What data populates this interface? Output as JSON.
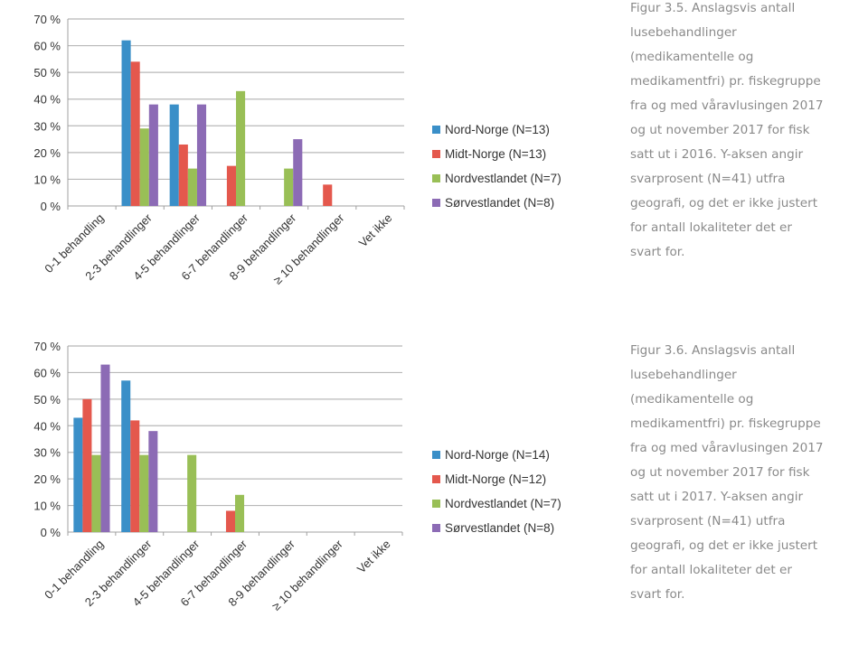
{
  "colors": {
    "Nord-Norge": "#3a8fc8",
    "Midt-Norge": "#e4584d",
    "Nordvestlandet": "#99bf56",
    "Sørvestlandet": "#8c6bb5",
    "grid": "#b8b8b8",
    "axis": "#a0a0a0"
  },
  "chart_data": [
    {
      "type": "bar",
      "title": "",
      "xlabel": "",
      "ylabel": "",
      "ylim": [
        0,
        70
      ],
      "yticks": [
        "0 %",
        "10 %",
        "20 %",
        "30 %",
        "40 %",
        "50 %",
        "60 %",
        "70 %"
      ],
      "grid": true,
      "legend_position": "right",
      "categories": [
        "0-1 behandling",
        "2-3 behandlinger",
        "4-5 behandlinger",
        "6-7 behandlinger",
        "8-9 behandlinger",
        "≥ 10 behandlinger",
        "Vet ikke"
      ],
      "series": [
        {
          "name": "Nord-Norge (N=13)",
          "key": "Nord-Norge",
          "values": [
            0,
            62,
            38,
            0,
            0,
            0,
            0
          ]
        },
        {
          "name": "Midt-Norge (N=13)",
          "key": "Midt-Norge",
          "values": [
            0,
            54,
            23,
            15,
            0,
            8,
            0
          ]
        },
        {
          "name": "Nordvestlandet (N=7)",
          "key": "Nordvestlandet",
          "values": [
            0,
            29,
            14,
            43,
            14,
            0,
            0
          ]
        },
        {
          "name": "Sørvestlandet (N=8)",
          "key": "Sørvestlandet",
          "values": [
            0,
            38,
            38,
            0,
            25,
            0,
            0
          ]
        }
      ]
    },
    {
      "type": "bar",
      "title": "",
      "xlabel": "",
      "ylabel": "",
      "ylim": [
        0,
        70
      ],
      "yticks": [
        "0 %",
        "10 %",
        "20 %",
        "30 %",
        "40 %",
        "50 %",
        "60 %",
        "70 %"
      ],
      "grid": true,
      "legend_position": "right",
      "categories": [
        "0-1 behandling",
        "2-3 behandlinger",
        "4-5 behandlinger",
        "6-7 behandlinger",
        "8-9 behandlinger",
        "≥ 10 behandlinger",
        "Vet ikke"
      ],
      "series": [
        {
          "name": "Nord-Norge (N=14)",
          "key": "Nord-Norge",
          "values": [
            43,
            57,
            0,
            0,
            0,
            0,
            0
          ]
        },
        {
          "name": "Midt-Norge (N=12)",
          "key": "Midt-Norge",
          "values": [
            50,
            42,
            0,
            8,
            0,
            0,
            0
          ]
        },
        {
          "name": "Nordvestlandet (N=7)",
          "key": "Nordvestlandet",
          "values": [
            29,
            29,
            29,
            14,
            0,
            0,
            0
          ]
        },
        {
          "name": "Sørvestlandet (N=8)",
          "key": "Sørvestlandet",
          "values": [
            63,
            38,
            0,
            0,
            0,
            0,
            0
          ]
        }
      ]
    }
  ],
  "captions": [
    {
      "lines": [
        "Figur 3.5. Anslagsvis antall",
        "lusebehandlinger",
        "(medikamentelle og",
        "medikamentfri) pr. fiskegruppe",
        "fra og med våravlusingen 2017",
        "og ut november 2017 for fisk",
        "satt ut i 2016. Y-aksen angir",
        "svarprosent (N=41) utfra",
        "geografi, og det er ikke justert",
        "for antall lokaliteter det er",
        "svart for."
      ]
    },
    {
      "lines": [
        "Figur 3.6. Anslagsvis antall",
        "lusebehandlinger",
        "(medikamentelle og",
        "medikamentfri) pr. fiskegruppe",
        "fra og med våravlusingen 2017",
        "og ut november 2017 for fisk",
        "satt ut i 2017. Y-aksen angir",
        "svarprosent (N=41) utfra",
        "geografi, og det er ikke justert",
        "for antall lokaliteter det er",
        "svart for."
      ]
    }
  ]
}
